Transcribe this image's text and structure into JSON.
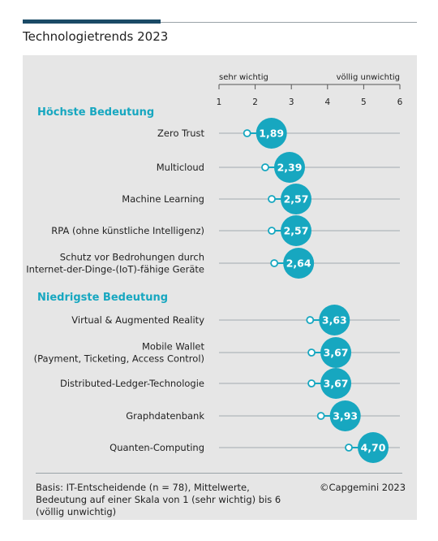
{
  "page": {
    "title": "Technologietrends 2023",
    "footnote": "Basis: IT-Entscheidende (n = 78), Mittelwerte, Bedeutung auf einer Skala von 1 (sehr wichtig) bis 6 (völlig unwichtig)",
    "copyright": "©Capgemini 2023"
  },
  "colors": {
    "accent": "#1a4a66",
    "marker": "#17a7c0",
    "line": "#b8bec2",
    "panel": "#e6e6e6",
    "section_heading": "#17a7c0"
  },
  "chart_data": {
    "type": "dot-range",
    "title": "Technologietrends 2023",
    "scale_left_label": "sehr wichtig",
    "scale_right_label": "völlig unwichtig",
    "xlim": [
      1,
      6
    ],
    "ticks": [
      "1",
      "2",
      "3",
      "4",
      "5",
      "6"
    ],
    "grid": false,
    "groups": [
      {
        "heading": "Höchste Bedeutung",
        "items": [
          {
            "label_lines": [
              "Zero Trust"
            ],
            "value": 1.89,
            "value_label": "1,89"
          },
          {
            "label_lines": [
              "Multicloud"
            ],
            "value": 2.39,
            "value_label": "2,39"
          },
          {
            "label_lines": [
              "Machine Learning"
            ],
            "value": 2.57,
            "value_label": "2,57"
          },
          {
            "label_lines": [
              "RPA (ohne künstliche Intelligenz)"
            ],
            "value": 2.57,
            "value_label": "2,57"
          },
          {
            "label_lines": [
              "Schutz vor Bedrohungen durch",
              "Internet-der-Dinge-(IoT)-fähige Geräte"
            ],
            "value": 2.64,
            "value_label": "2,64"
          }
        ]
      },
      {
        "heading": "Niedrigste Bedeutung",
        "items": [
          {
            "label_lines": [
              "Virtual & Augmented Reality"
            ],
            "value": 3.63,
            "value_label": "3,63"
          },
          {
            "label_lines": [
              "Mobile Wallet",
              "(Payment, Ticketing, Access Control)"
            ],
            "value": 3.67,
            "value_label": "3,67"
          },
          {
            "label_lines": [
              "Distributed-Ledger-Technologie"
            ],
            "value": 3.67,
            "value_label": "3,67"
          },
          {
            "label_lines": [
              "Graphdatenbank"
            ],
            "value": 3.93,
            "value_label": "3,93"
          },
          {
            "label_lines": [
              "Quanten-Computing"
            ],
            "value": 4.7,
            "value_label": "4,70"
          }
        ]
      }
    ]
  }
}
